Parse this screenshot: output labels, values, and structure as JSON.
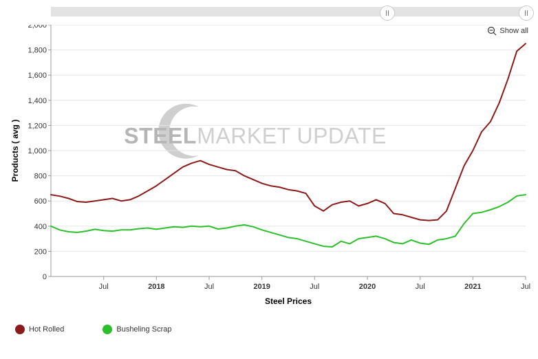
{
  "chart": {
    "type": "line",
    "y_label": "Products ( avg )",
    "x_label": "Steel Prices",
    "show_all_label": "Show all",
    "ylim": [
      0,
      2000
    ],
    "ytick_step": 200,
    "x_ticks": [
      {
        "i": 6,
        "label": "Jul"
      },
      {
        "i": 12,
        "label": "2018",
        "bold": true
      },
      {
        "i": 18,
        "label": "Jul"
      },
      {
        "i": 24,
        "label": "2019",
        "bold": true
      },
      {
        "i": 30,
        "label": "Jul"
      },
      {
        "i": 36,
        "label": "2020",
        "bold": true
      },
      {
        "i": 42,
        "label": "Jul"
      },
      {
        "i": 48,
        "label": "2021",
        "bold": true
      },
      {
        "i": 54,
        "label": "Jul"
      }
    ],
    "n_points": 55,
    "grid_color": "#e6e6e6",
    "axis_color": "#999",
    "background_color": "#ffffff",
    "watermark": {
      "text_a": "STEEL",
      "text_b": "MARKET UPDATE",
      "fill_a": "#b5b5b5",
      "fill_b": "#cfcfcf",
      "moon_fill": "#cfcfcf",
      "fontsize": 32
    },
    "series": [
      {
        "name": "Hot Rolled",
        "color": "#8b1a1a",
        "width": 2,
        "data": [
          650,
          638,
          620,
          595,
          590,
          600,
          610,
          620,
          600,
          610,
          640,
          680,
          720,
          770,
          820,
          870,
          900,
          920,
          890,
          870,
          850,
          840,
          800,
          770,
          740,
          720,
          710,
          690,
          680,
          660,
          560,
          520,
          570,
          590,
          600,
          560,
          580,
          610,
          580,
          500,
          490,
          470,
          450,
          445,
          450,
          520,
          700,
          880,
          1000,
          1150,
          1230,
          1380,
          1570,
          1790,
          1850
        ]
      },
      {
        "name": "Busheling Scrap",
        "color": "#2bbf2b",
        "width": 2,
        "data": [
          400,
          370,
          355,
          350,
          360,
          375,
          365,
          360,
          370,
          370,
          380,
          385,
          375,
          385,
          395,
          390,
          400,
          395,
          400,
          377,
          385,
          400,
          410,
          395,
          370,
          350,
          330,
          310,
          300,
          280,
          260,
          240,
          235,
          280,
          260,
          300,
          310,
          320,
          300,
          270,
          260,
          290,
          265,
          255,
          290,
          300,
          320,
          420,
          500,
          510,
          530,
          555,
          590,
          640,
          650
        ]
      }
    ],
    "legend": [
      {
        "label": "Hot Rolled",
        "color": "#8b1a1a"
      },
      {
        "label": "Busheling Scrap",
        "color": "#2bbf2b"
      }
    ]
  }
}
